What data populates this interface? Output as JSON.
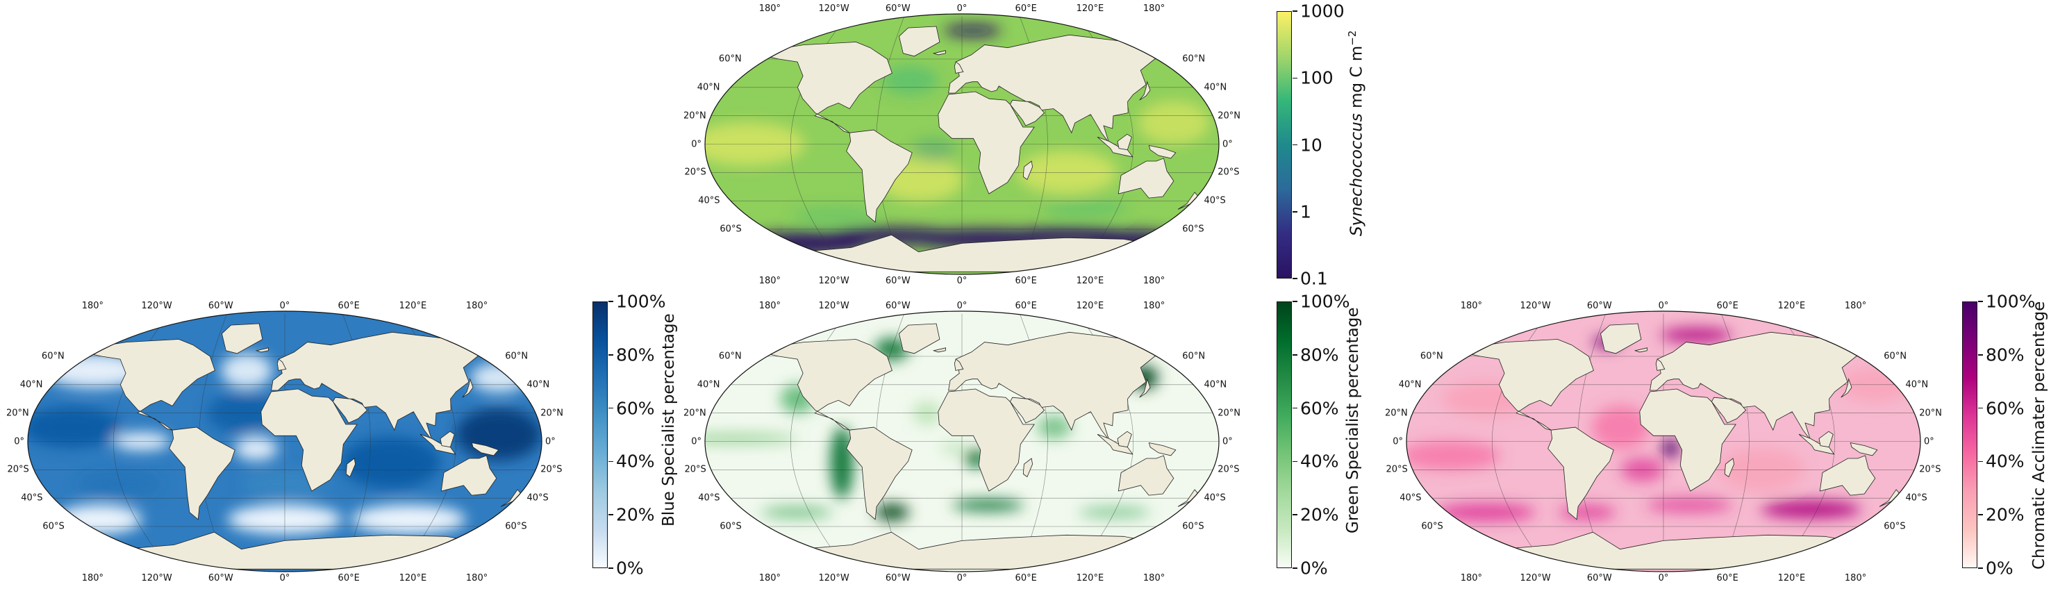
{
  "lon_ticks": [
    "180°",
    "120°W",
    "60°W",
    "0°",
    "60°E",
    "120°E",
    "180°"
  ],
  "lat_left_ticks": [
    "60°N",
    "40°N",
    "20°N",
    "0°",
    "20°S",
    "40°S",
    "60°S"
  ],
  "lat_right_ticks": [
    "60°N",
    "40°N",
    "20°N",
    "0°",
    "20°S",
    "40°S",
    "60°S"
  ],
  "panels": {
    "synechococcus": {
      "colorbar": {
        "title_italic": "Synechococcus",
        "title_rest": " mg C m",
        "title_sup": "−2",
        "ticks": [
          "1000",
          "100",
          "10",
          "1",
          "0.1"
        ],
        "scale": "log",
        "range": [
          0.1,
          1000
        ],
        "colors": [
          "#fdf066",
          "#a2d66a",
          "#35b779",
          "#1f8a8c",
          "#2c6a9a",
          "#332d83",
          "#2a1262"
        ]
      },
      "ocean_color": "#8fcf5c"
    },
    "blue": {
      "colorbar": {
        "title": "Blue Specialist percentage",
        "ticks": [
          "100%",
          "80%",
          "60%",
          "40%",
          "20%",
          "0%"
        ],
        "colors": [
          "#08306b",
          "#08519c",
          "#2171b5",
          "#4292c6",
          "#6baed6",
          "#9ecae1",
          "#c6dbef",
          "#f7fbff"
        ]
      },
      "ocean_color": "#2f7cc0"
    },
    "green": {
      "colorbar": {
        "title": "Green Specialist percentage",
        "ticks": [
          "100%",
          "80%",
          "60%",
          "40%",
          "20%",
          "0%"
        ],
        "colors": [
          "#00441b",
          "#006d2c",
          "#238b45",
          "#41ab5d",
          "#74c476",
          "#a1d99b",
          "#c7e9c0",
          "#f7fcf5"
        ]
      },
      "ocean_color": "#f1f9ee"
    },
    "chromatic": {
      "colorbar": {
        "title": "Chromatic Acclimater percentage",
        "ticks": [
          "100%",
          "80%",
          "60%",
          "40%",
          "20%",
          "0%"
        ],
        "colors": [
          "#49006a",
          "#7a0177",
          "#ae017e",
          "#dd3497",
          "#f768a1",
          "#fa9fb5",
          "#fcc5c0",
          "#fff7f3"
        ]
      },
      "ocean_color": "#f6b9cf"
    }
  },
  "land_color": "#efebda"
}
